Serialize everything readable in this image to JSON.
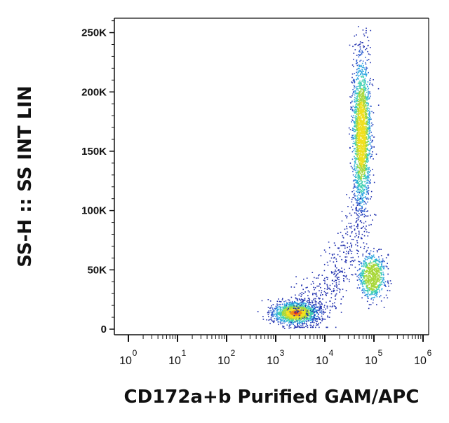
{
  "chart_data": {
    "type": "scatter",
    "title": "",
    "xlabel": "CD172a+b Purified GAM/APC",
    "ylabel": "SS-H :: SS INT LIN",
    "x_scale": "log",
    "xlim": [
      1,
      1000000
    ],
    "ylim": [
      0,
      262144
    ],
    "y_ticks": [
      {
        "value": 0,
        "label": "0"
      },
      {
        "value": 50000,
        "label": "50K"
      },
      {
        "value": 100000,
        "label": "100K"
      },
      {
        "value": 150000,
        "label": "150K"
      },
      {
        "value": 200000,
        "label": "200K"
      },
      {
        "value": 250000,
        "label": "250K"
      }
    ],
    "x_ticks": [
      {
        "value": 1,
        "base": "10",
        "exp": "0"
      },
      {
        "value": 10,
        "base": "10",
        "exp": "1"
      },
      {
        "value": 100,
        "base": "10",
        "exp": "2"
      },
      {
        "value": 1000,
        "base": "10",
        "exp": "3"
      },
      {
        "value": 10000,
        "base": "10",
        "exp": "4"
      },
      {
        "value": 100000,
        "base": "10",
        "exp": "5"
      },
      {
        "value": 1000000,
        "base": "10",
        "exp": "6"
      }
    ],
    "populations": [
      {
        "center_x": 2500,
        "center_y": 14000,
        "spread_log_x": 0.22,
        "spread_y": 4500,
        "count": 1500
      },
      {
        "center_x": 55000,
        "center_y": 165000,
        "spread_log_x": 0.09,
        "spread_y": 30000,
        "count": 2200
      },
      {
        "center_x": 90000,
        "center_y": 45000,
        "spread_log_x": 0.13,
        "spread_y": 9000,
        "count": 800
      }
    ],
    "density_colors": [
      "#1f2fae",
      "#2f5fd0",
      "#2fa8e0",
      "#3fd0b0",
      "#a8d83a",
      "#f0e020",
      "#f08a18",
      "#e02020"
    ],
    "grid": false,
    "legend": "none"
  }
}
